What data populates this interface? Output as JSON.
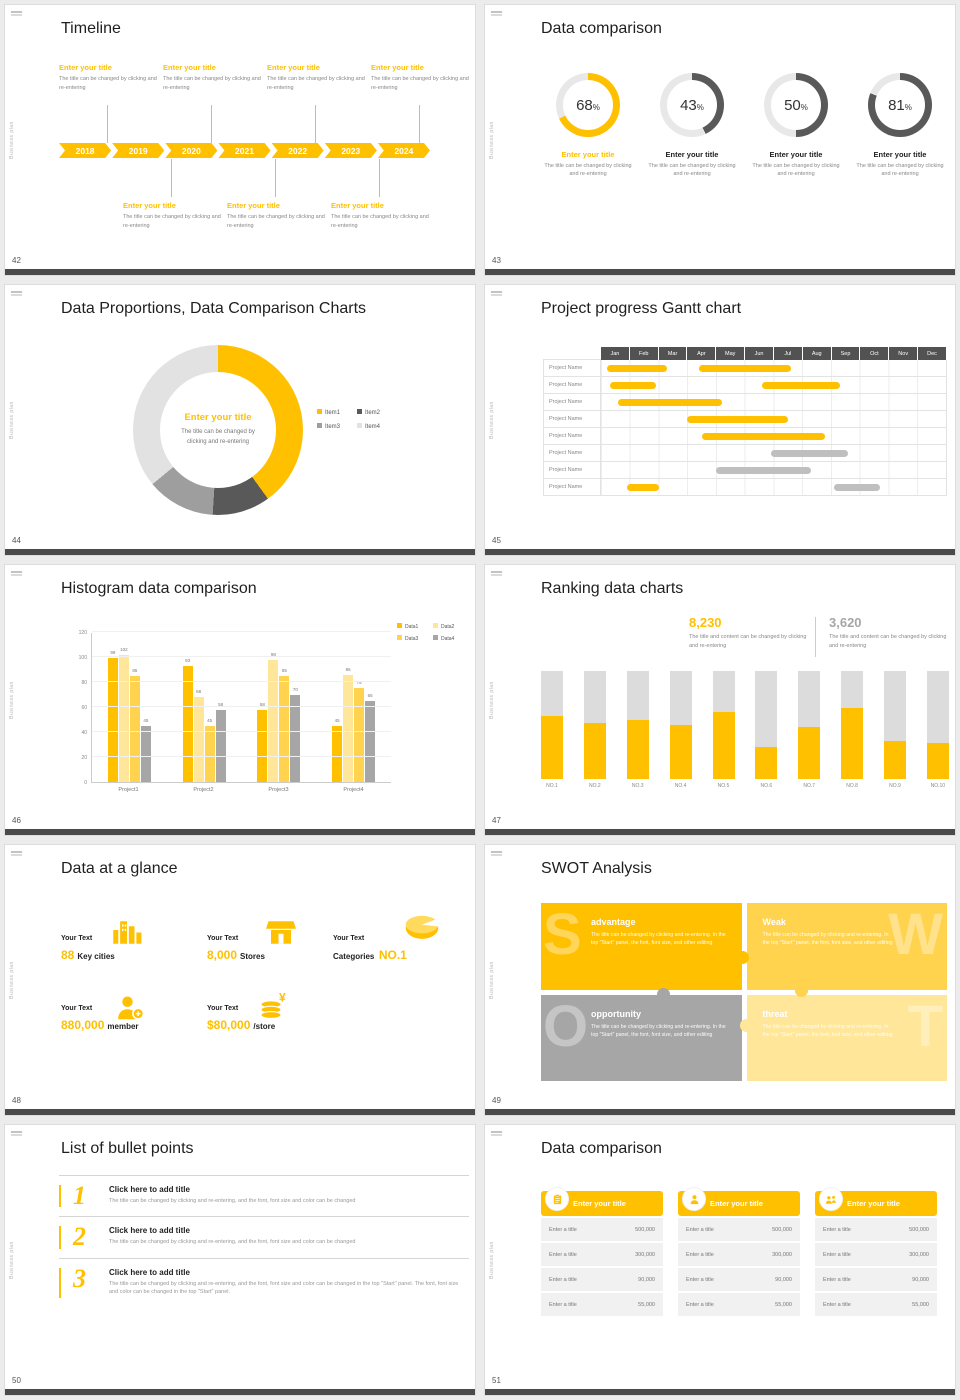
{
  "common": {
    "side_text": "Business plan"
  },
  "s42": {
    "page": "42",
    "title": "Timeline",
    "years": [
      "2018",
      "2019",
      "2020",
      "2021",
      "2022",
      "2023",
      "2024"
    ],
    "entry_title": "Enter your title",
    "entry_desc": "The title can be changed by clicking and re-entering"
  },
  "s43": {
    "page": "43",
    "title": "Data comparison",
    "percent_sign": "%",
    "entry_title": "Enter your title",
    "entry_desc": "The title can be changed by clicking and re-entering",
    "chart_data": {
      "type": "donut-progress",
      "track": "#E8E8E8",
      "items": [
        {
          "pct": 68,
          "color": "#FFC000"
        },
        {
          "pct": 43,
          "color": "#595959"
        },
        {
          "pct": 50,
          "color": "#595959"
        },
        {
          "pct": 81,
          "color": "#595959"
        }
      ]
    }
  },
  "s44": {
    "page": "44",
    "title": "Data Proportions, Data Comparison Charts",
    "center_title": "Enter your title",
    "center_desc": "The title can be changed by clicking and re-entering",
    "chart_data": {
      "type": "pie",
      "segments": [
        {
          "name": "Item1",
          "value": 40,
          "color": "#FFC000"
        },
        {
          "name": "Item2",
          "value": 11,
          "color": "#595959"
        },
        {
          "name": "Item3",
          "value": 13,
          "color": "#9E9E9E"
        },
        {
          "name": "Item4",
          "value": 36,
          "color": "#E2E2E2"
        }
      ]
    }
  },
  "s45": {
    "page": "45",
    "title": "Project progress Gantt chart",
    "months": [
      "Jan",
      "Feb",
      "Mar",
      "Apr",
      "May",
      "Jun",
      "Jul",
      "Aug",
      "Sep",
      "Oct",
      "Nov",
      "Dec"
    ],
    "chart_data": {
      "type": "gantt",
      "rows": [
        {
          "label": "Project Name",
          "bars": [
            {
              "start": 0.2,
              "end": 2.3,
              "color": "#FFC000"
            },
            {
              "start": 3.4,
              "end": 6.6,
              "color": "#FFC000"
            }
          ]
        },
        {
          "label": "Project Name",
          "bars": [
            {
              "start": 0.3,
              "end": 1.9,
              "color": "#FFC000"
            },
            {
              "start": 5.6,
              "end": 8.3,
              "color": "#FFC000"
            }
          ]
        },
        {
          "label": "Project Name",
          "bars": [
            {
              "start": 0.6,
              "end": 4.2,
              "color": "#FFC000"
            }
          ]
        },
        {
          "label": "Project Name",
          "bars": [
            {
              "start": 3.0,
              "end": 6.5,
              "color": "#FFC000"
            }
          ]
        },
        {
          "label": "Project Name",
          "bars": [
            {
              "start": 3.5,
              "end": 7.8,
              "color": "#FFC000"
            }
          ]
        },
        {
          "label": "Project Name",
          "bars": [
            {
              "start": 5.9,
              "end": 8.6,
              "color": "#BFBFBF"
            }
          ]
        },
        {
          "label": "Project Name",
          "bars": [
            {
              "start": 4.0,
              "end": 7.3,
              "color": "#BFBFBF"
            }
          ]
        },
        {
          "label": "Project Name",
          "bars": [
            {
              "start": 0.9,
              "end": 2.0,
              "color": "#FFC000"
            },
            {
              "start": 8.1,
              "end": 9.7,
              "color": "#BFBFBF"
            }
          ]
        }
      ]
    }
  },
  "s46": {
    "page": "46",
    "title": "Histogram data comparison",
    "chart_data": {
      "type": "bar",
      "categories": [
        "Project1",
        "Project2",
        "Project3",
        "Project4"
      ],
      "series": [
        {
          "name": "Data1",
          "color": "#FFC000",
          "values": [
            99,
            93,
            58,
            45
          ]
        },
        {
          "name": "Data2",
          "color": "#FFE699",
          "values": [
            102,
            68,
            98,
            86
          ]
        },
        {
          "name": "Data3",
          "color": "#FFD34D",
          "values": [
            85,
            45,
            85,
            75
          ]
        },
        {
          "name": "Data4",
          "color": "#A6A6A6",
          "values": [
            45,
            58,
            70,
            65
          ]
        }
      ],
      "ylim": [
        0,
        120
      ],
      "yticks": [
        0,
        20,
        40,
        60,
        80,
        100,
        120
      ]
    }
  },
  "s47": {
    "page": "47",
    "title": "Ranking data charts",
    "stat_primary": {
      "value": "8,230",
      "desc": "The title and content can be changed by clicking and re-entering"
    },
    "stat_secondary": {
      "value": "3,620",
      "desc": "The title and content can be changed by clicking and re-entering"
    },
    "chart_data": {
      "type": "bar",
      "categories": [
        "NO.1",
        "NO.2",
        "NO.3",
        "NO.4",
        "NO.5",
        "NO.6",
        "NO.7",
        "NO.8",
        "NO.9",
        "NO.10"
      ],
      "values": [
        58,
        52,
        55,
        50,
        62,
        30,
        48,
        66,
        35,
        33
      ],
      "ymax": 100,
      "fill_color": "#FFC000",
      "track_color": "#DCDCDC"
    }
  },
  "s48": {
    "page": "48",
    "title": "Data at a glance",
    "stats": [
      {
        "label": "Your Text",
        "value": "88",
        "unit": "Key cities"
      },
      {
        "label": "Your Text",
        "value": "8,000",
        "unit": "Stores"
      },
      {
        "label": "Your Text",
        "prefix": "Categories",
        "value": "NO.1"
      },
      {
        "label": "Your Text",
        "value": "880,000",
        "unit": "member"
      },
      {
        "label": "Your Text",
        "value": "$80,000",
        "unit": "/store"
      }
    ]
  },
  "s49": {
    "page": "49",
    "title": "SWOT Analysis",
    "quadrants": [
      {
        "letter": "S",
        "heading": "advantage",
        "color": "#FFC000",
        "desc": "The title can be changed by clicking and re-entering. In the top \"Start\" panel, the font, font size, and other editing"
      },
      {
        "letter": "W",
        "heading": "Weak",
        "color": "#FFD34D",
        "desc": "The title can be changed by clicking and re-entering. In the top \"Start\" panel, the font, font size, and other editing"
      },
      {
        "letter": "O",
        "heading": "opportunity",
        "color": "#A6A6A6",
        "desc": "The title can be changed by clicking and re-entering. In the top \"Start\" panel, the font, font size, and other editing"
      },
      {
        "letter": "T",
        "heading": "threat",
        "color": "#FFE699",
        "desc": "The title can be changed by clicking and re-entering. In the top \"Start\" panel, the font, font size, and other editing"
      }
    ]
  },
  "s50": {
    "page": "50",
    "title": "List of bullet points",
    "items": [
      {
        "num": "1",
        "heading": "Click here to add title",
        "desc": "The title can be changed by clicking and re-entering, and the font, font size and color can be changed"
      },
      {
        "num": "2",
        "heading": "Click here to add title",
        "desc": "The title can be changed by clicking and re-entering, and the font, font size and color can be changed"
      },
      {
        "num": "3",
        "heading": "Click here to add title",
        "desc": "The title can be changed by clicking and re-entering, and the font, font size and color can be changed in the top \"Start\" panel. The font, font size and color can be changed in the top \"Start\" panel."
      }
    ]
  },
  "s51": {
    "page": "51",
    "title": "Data comparison",
    "row_label": "Enter a title",
    "tables": [
      {
        "header": "Enter your title",
        "values": [
          "500,000",
          "300,000",
          "90,000",
          "55,000"
        ]
      },
      {
        "header": "Enter your title",
        "values": [
          "500,000",
          "300,000",
          "90,000",
          "55,000"
        ]
      },
      {
        "header": "Enter your title",
        "values": [
          "500,000",
          "300,000",
          "90,000",
          "55,000"
        ]
      }
    ]
  }
}
